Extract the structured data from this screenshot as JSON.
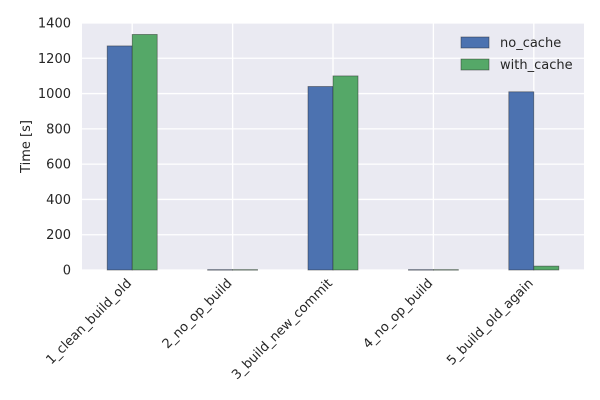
{
  "chart_data": {
    "type": "bar",
    "title": "",
    "xlabel": "",
    "ylabel": "Time [s]",
    "ylim": [
      0,
      1400
    ],
    "yticks": [
      0,
      200,
      400,
      600,
      800,
      1000,
      1200,
      1400
    ],
    "categories": [
      "1_clean_build_old",
      "2_no_op_build",
      "3_build_new_commit",
      "4_no_op_build",
      "5_build_old_again"
    ],
    "series": [
      {
        "name": "no_cache",
        "color": "#4C72B0",
        "values": [
          1270,
          2,
          1040,
          2,
          1010
        ]
      },
      {
        "name": "with_cache",
        "color": "#55A868",
        "values": [
          1335,
          2,
          1100,
          2,
          22
        ]
      }
    ],
    "grid": true,
    "legend_position": "top-right",
    "background_color": "#EAEAF2",
    "grid_color": "#FFFFFF"
  }
}
